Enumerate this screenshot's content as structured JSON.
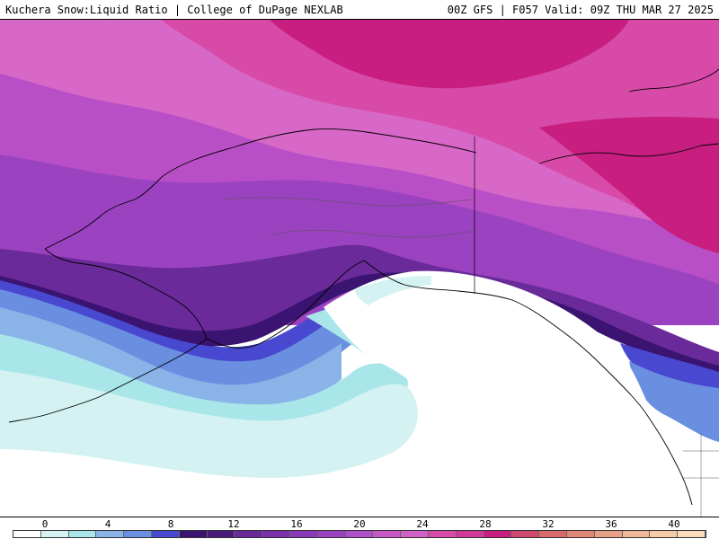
{
  "header": {
    "left_title": "Kuchera Snow:Liquid Ratio | College of DuPage NEXLAB",
    "right_title": "00Z GFS | F057 Valid: 09Z THU MAR 27 2025"
  },
  "colors": {
    "ocean_white": "#ffffff",
    "light_cyan": "#c8f0f0",
    "cyan": "#a8e6ea",
    "light_blue": "#8ab4e8",
    "blue": "#6a8ee0",
    "royal_blue": "#4848d0",
    "deep_purple": "#4a1a7a",
    "purple": "#6a2a9a",
    "violet": "#8a3ab8",
    "orchid": "#b050c8",
    "pink_violet": "#d060c8",
    "magenta": "#d84aa8",
    "deep_magenta": "#c81e80",
    "coastline": "#000000"
  },
  "colorbar": {
    "labels": [
      "0",
      "4",
      "8",
      "12",
      "16",
      "20",
      "24",
      "28",
      "32",
      "36",
      "40"
    ],
    "swatches": [
      "#ffffff",
      "#d4f2f2",
      "#a8e6ea",
      "#8ab4e8",
      "#6a8ee0",
      "#4848d0",
      "#3a1470",
      "#4a1a7a",
      "#6a2a9a",
      "#7a32aa",
      "#8a3ab8",
      "#9a42c0",
      "#b050c8",
      "#c858c8",
      "#d060c8",
      "#d84aa8",
      "#d03a98",
      "#c81e80",
      "#d04a70",
      "#d86a6a",
      "#e08878",
      "#e8a088",
      "#f0b898",
      "#f6cca8",
      "#fadcbc"
    ]
  }
}
